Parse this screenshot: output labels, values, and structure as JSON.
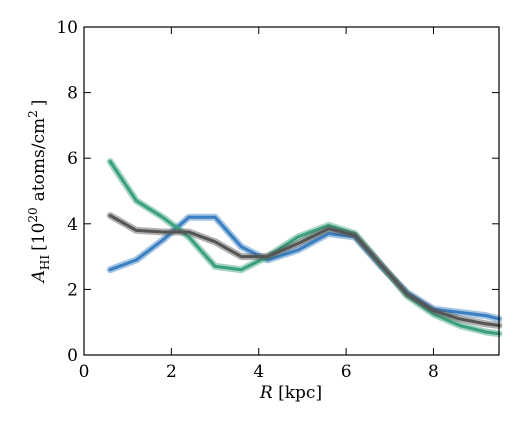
{
  "chart_data": {
    "type": "line",
    "xlabel_symbol": "R",
    "xlabel_unit": "[kpc]",
    "ylabel_symbol": "A",
    "ylabel_subscript": "HI",
    "ylabel_unit_prefix": "[10",
    "ylabel_unit_exp": "20",
    "ylabel_unit_mid": "atoms/cm",
    "ylabel_unit_exp2": "2",
    "ylabel_unit_suffix": "]",
    "xlim": [
      0,
      9.5
    ],
    "ylim": [
      0,
      10
    ],
    "xticks": [
      "0",
      "2",
      "4",
      "6",
      "8"
    ],
    "yticks": [
      "0",
      "2",
      "4",
      "6",
      "8",
      "10"
    ],
    "grid": false,
    "series": [
      {
        "color": "#3a7fc1",
        "x": [
          0.6,
          1.2,
          1.8,
          2.4,
          3.0,
          3.6,
          4.2,
          4.9,
          5.6,
          6.2,
          6.8,
          7.4,
          8.0,
          8.6,
          9.2,
          9.5
        ],
        "y": [
          2.6,
          2.9,
          3.5,
          4.2,
          4.2,
          3.3,
          2.9,
          3.2,
          3.7,
          3.6,
          2.7,
          1.9,
          1.4,
          1.3,
          1.2,
          1.1
        ]
      },
      {
        "color": "#3aa07c",
        "x": [
          0.6,
          1.2,
          1.8,
          2.4,
          3.0,
          3.6,
          4.2,
          4.9,
          5.6,
          6.2,
          6.8,
          7.4,
          8.0,
          8.6,
          9.2,
          9.5
        ],
        "y": [
          5.9,
          4.7,
          4.2,
          3.6,
          2.7,
          2.6,
          3.0,
          3.6,
          3.95,
          3.7,
          2.75,
          1.8,
          1.25,
          0.9,
          0.7,
          0.65
        ]
      },
      {
        "color": "#555555",
        "x": [
          0.6,
          1.2,
          1.8,
          2.4,
          3.0,
          3.6,
          4.2,
          4.9,
          5.6,
          6.2,
          6.8,
          7.4,
          8.0,
          8.6,
          9.2,
          9.5
        ],
        "y": [
          4.25,
          3.8,
          3.75,
          3.75,
          3.45,
          3.0,
          3.0,
          3.4,
          3.85,
          3.65,
          2.75,
          1.85,
          1.35,
          1.1,
          0.95,
          0.9
        ]
      }
    ]
  }
}
